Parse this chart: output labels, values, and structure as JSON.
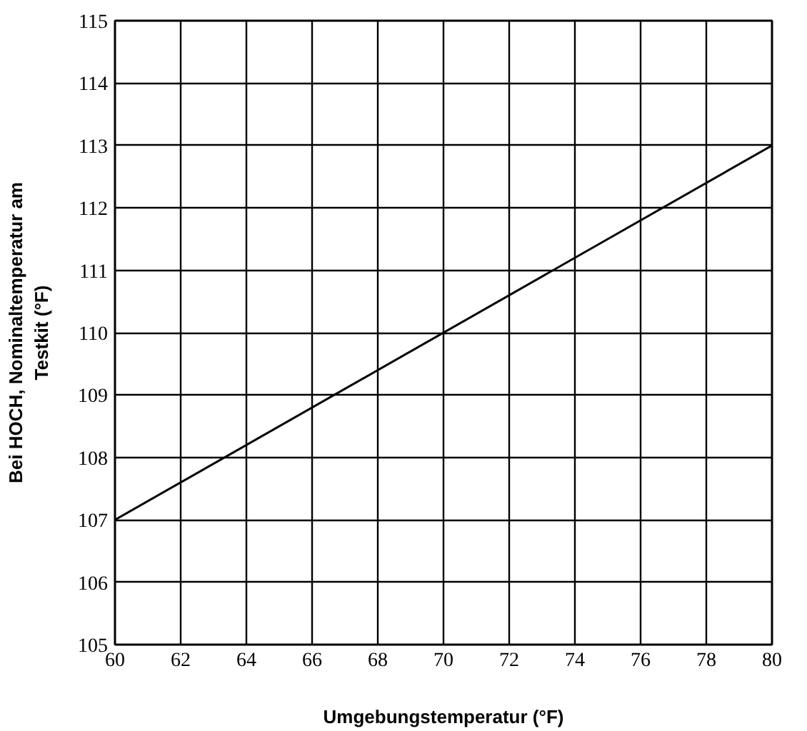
{
  "chart_data": {
    "type": "line",
    "xlabel": "Umgebungstemperatur (°F)",
    "ylabel": "Bei HOCH, Nominaltemperatur am Testkit (°F)",
    "x": [
      60,
      80
    ],
    "series": [
      {
        "color": "#000000",
        "values": [
          107,
          113
        ]
      }
    ],
    "xlim": [
      60,
      80
    ],
    "xticks": [
      60,
      62,
      64,
      66,
      68,
      70,
      72,
      74,
      76,
      78,
      80
    ],
    "ylim": [
      105,
      115
    ],
    "yticks": [
      105,
      106,
      107,
      108,
      109,
      110,
      111,
      112,
      113,
      114,
      115
    ],
    "grid": true,
    "marker": "none",
    "line_style": "solid"
  }
}
